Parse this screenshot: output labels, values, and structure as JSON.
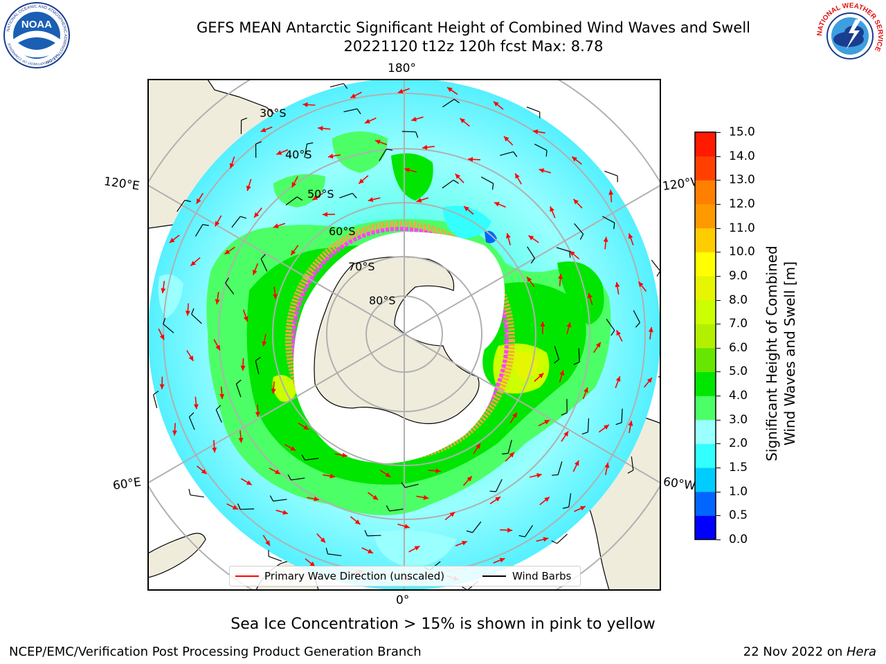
{
  "header": {
    "title_line1": "GEFS MEAN Antarctic Significant Height of Combined Wind Waves and Swell",
    "title_line2": "20221120 t12z 120h fcst   Max: 8.78"
  },
  "logos": {
    "noaa_text": "NOAA",
    "noaa_ring_text": "NATIONAL OCEANIC AND ATMOSPHERIC ADMINISTRATION",
    "noaa_ring_text_bottom": "U.S. DEPARTMENT OF COMMERCE",
    "nws_ring_text": "NATIONAL WEATHER SERVICE"
  },
  "map": {
    "projection": "south polar stereographic",
    "longitude_labels": {
      "top": "180°",
      "bottom": "0°",
      "upper_left": "120°E",
      "lower_left": "60°E",
      "upper_right": "120°W",
      "lower_right": "60°W"
    },
    "latitude_labels": [
      "30°S",
      "40°S",
      "50°S",
      "60°S",
      "70°S",
      "80°S"
    ],
    "colors": {
      "land": "#efecdc",
      "coastline": "#000000",
      "gridlines": "#b0b0b0",
      "sea_ice_pink": "#ff44ff",
      "sea_ice_orange": "#f7a840",
      "antarctic_interior": "#ffffff",
      "wave_arrows": "#ff0000",
      "wind_barbs": "#000000"
    }
  },
  "colorbar": {
    "label_line1": "Significant Height of Combined",
    "label_line2": "Wind Waves and Swell [m]",
    "ticks": [
      "0.0",
      "0.5",
      "1.0",
      "1.5",
      "2.0",
      "3.0",
      "4.0",
      "5.0",
      "6.0",
      "7.0",
      "8.0",
      "9.0",
      "10.0",
      "11.0",
      "12.0",
      "13.0",
      "14.0",
      "15.0"
    ],
    "colors": [
      "#0000ff",
      "#0066ff",
      "#00ccff",
      "#33ffff",
      "#99ffff",
      "#4cff66",
      "#00e600",
      "#66e600",
      "#b3f000",
      "#ccff00",
      "#e6f500",
      "#ffff00",
      "#ffcc00",
      "#ff9900",
      "#ff8000",
      "#ff4000",
      "#ff1a00"
    ]
  },
  "legend": {
    "items": [
      {
        "label": "Primary Wave Direction (unscaled)",
        "color": "#ff0000"
      },
      {
        "label": "Wind Barbs",
        "color": "#000000"
      }
    ]
  },
  "notes": {
    "sea_ice": "Sea Ice Concentration > 15% is shown in pink to yellow"
  },
  "footer": {
    "left": "NCEP/EMC/Verification Post Processing Product Generation Branch",
    "date": "22 Nov 2022 on ",
    "host": "Hera"
  }
}
